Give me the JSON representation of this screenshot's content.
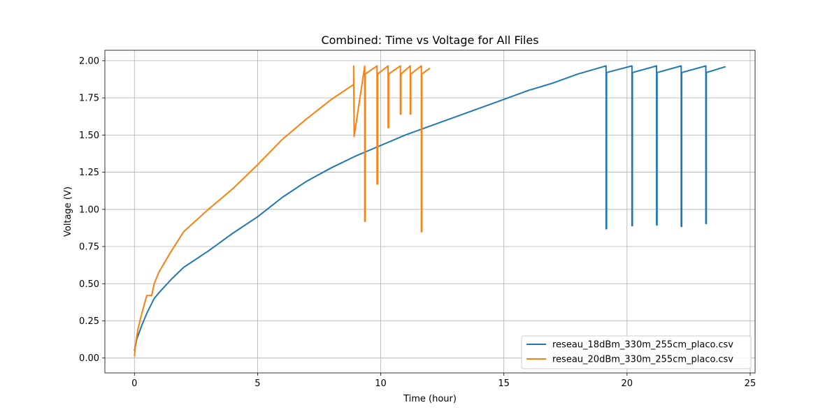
{
  "chart_data": {
    "type": "line",
    "title": "Combined: Time vs Voltage for All Files",
    "xlabel": "Time (hour)",
    "ylabel": "Voltage (V)",
    "xlim": [
      -1.2,
      25.2
    ],
    "ylim": [
      -0.1,
      2.07
    ],
    "xticks": [
      0,
      5,
      10,
      15,
      20,
      25
    ],
    "xtick_labels": [
      "0",
      "5",
      "10",
      "15",
      "20",
      "25"
    ],
    "yticks": [
      0.0,
      0.25,
      0.5,
      0.75,
      1.0,
      1.25,
      1.5,
      1.75,
      2.0
    ],
    "ytick_labels": [
      "0.00",
      "0.25",
      "0.50",
      "0.75",
      "1.00",
      "1.25",
      "1.50",
      "1.75",
      "2.00"
    ],
    "grid": true,
    "legend_position": "lower-right",
    "series": [
      {
        "name": "reseau_18dBm_330m_255cm_placo.csv",
        "color": "#1f77b4",
        "x": [
          0,
          0.1,
          0.3,
          0.5,
          0.8,
          1.0,
          1.5,
          2.0,
          3.0,
          4.0,
          5.0,
          6.0,
          7.0,
          8.0,
          9.0,
          10.0,
          11.0,
          12.0,
          13.0,
          14.0,
          15.0,
          16.0,
          17.0,
          18.0,
          19.15,
          19.15,
          19.17,
          19.17,
          20.2,
          20.2,
          20.22,
          20.22,
          21.2,
          21.2,
          21.22,
          21.22,
          22.2,
          22.2,
          22.22,
          22.22,
          23.2,
          23.2,
          23.22,
          23.22,
          24.0
        ],
        "y": [
          0.05,
          0.13,
          0.22,
          0.3,
          0.4,
          0.44,
          0.53,
          0.61,
          0.72,
          0.84,
          0.95,
          1.08,
          1.19,
          1.28,
          1.36,
          1.43,
          1.5,
          1.56,
          1.62,
          1.68,
          1.74,
          1.8,
          1.85,
          1.91,
          1.965,
          0.87,
          0.87,
          1.92,
          1.965,
          0.89,
          0.89,
          1.92,
          1.965,
          0.895,
          0.895,
          1.92,
          1.965,
          0.885,
          0.885,
          1.92,
          1.965,
          0.905,
          0.905,
          1.92,
          1.96
        ]
      },
      {
        "name": "reseau_20dBm_330m_255cm_placo.csv",
        "color": "#ff7f0e",
        "x": [
          0,
          0.05,
          0.15,
          0.3,
          0.5,
          0.6,
          0.7,
          0.8,
          1.0,
          1.5,
          2.0,
          3.0,
          4.0,
          5.0,
          6.0,
          7.0,
          8.0,
          8.9,
          8.9,
          8.92,
          8.92,
          9.35,
          9.35,
          9.37,
          9.37,
          9.85,
          9.85,
          9.87,
          9.87,
          10.3,
          10.3,
          10.32,
          10.32,
          10.8,
          10.8,
          10.82,
          10.82,
          11.2,
          11.2,
          11.22,
          11.22,
          11.65,
          11.65,
          11.67,
          11.67,
          12.0
        ],
        "y": [
          0.01,
          0.1,
          0.2,
          0.3,
          0.42,
          0.42,
          0.42,
          0.5,
          0.58,
          0.72,
          0.85,
          1.0,
          1.14,
          1.3,
          1.47,
          1.61,
          1.74,
          1.84,
          1.965,
          1.49,
          1.49,
          1.965,
          0.92,
          0.92,
          1.91,
          1.965,
          1.17,
          1.17,
          1.91,
          1.965,
          1.55,
          1.55,
          1.91,
          1.965,
          1.64,
          1.64,
          1.91,
          1.965,
          1.64,
          1.64,
          1.91,
          1.965,
          0.85,
          0.85,
          1.91,
          1.95
        ]
      }
    ]
  }
}
